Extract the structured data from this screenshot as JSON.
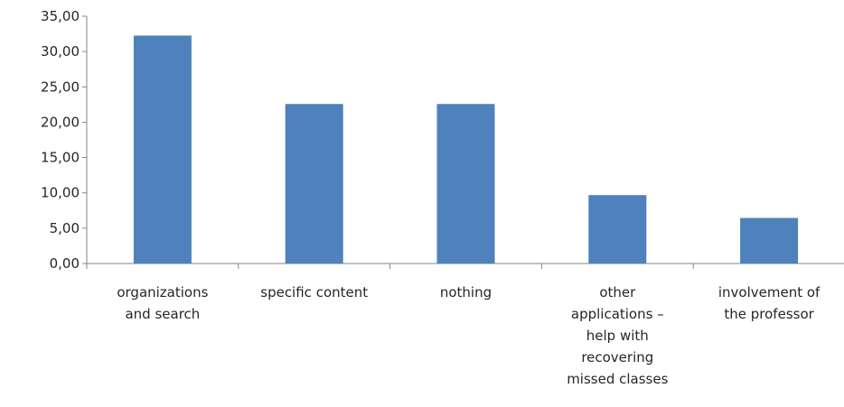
{
  "chart_data": {
    "type": "bar",
    "title": "",
    "xlabel": "",
    "ylabel": "",
    "categories": [
      [
        "organizations",
        "and search"
      ],
      [
        "specific content"
      ],
      [
        "nothing"
      ],
      [
        "other",
        "applications –",
        "help with",
        "recovering",
        "missed classes"
      ],
      [
        "involvement of",
        "the professor"
      ]
    ],
    "values": [
      32.26,
      22.58,
      22.58,
      9.68,
      6.45
    ],
    "ylim": [
      0,
      35
    ],
    "yticks": [
      "0,00",
      "5,00",
      "10,00",
      "15,00",
      "20,00",
      "25,00",
      "30,00",
      "35,00"
    ],
    "grid": false,
    "legend": "none",
    "bar_color": "#4f81bd",
    "axis_color": "#868686"
  }
}
